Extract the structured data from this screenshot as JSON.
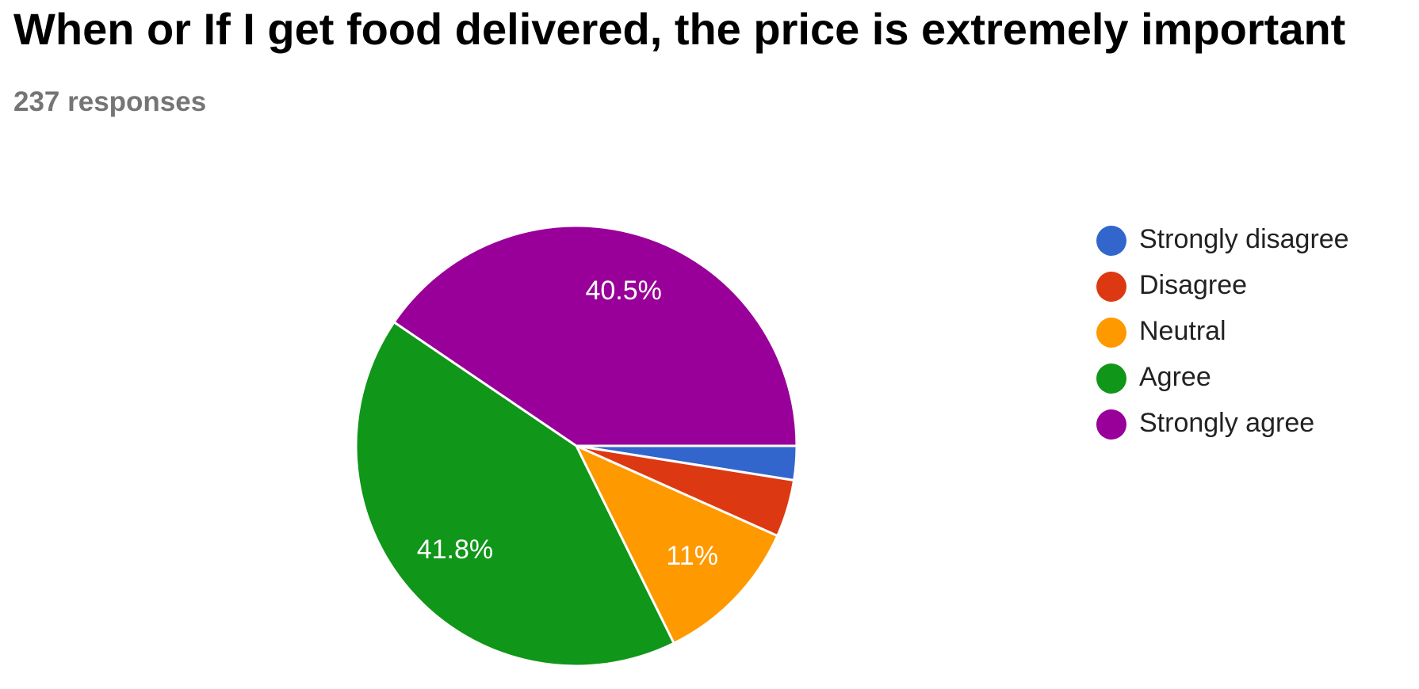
{
  "chart_data": {
    "type": "pie",
    "title": "When or If I get food delivered, the price is extremely important",
    "subtitle": "237 responses",
    "categories": [
      "Strongly disagree",
      "Disagree",
      "Neutral",
      "Agree",
      "Strongly agree"
    ],
    "values": [
      2.5,
      4.2,
      11,
      41.8,
      40.5
    ],
    "value_labels": [
      null,
      null,
      "11%",
      "41.8%",
      "40.5%"
    ],
    "colors": [
      "#3366cc",
      "#dc3912",
      "#ff9900",
      "#109618",
      "#990099"
    ],
    "legend": "right"
  }
}
